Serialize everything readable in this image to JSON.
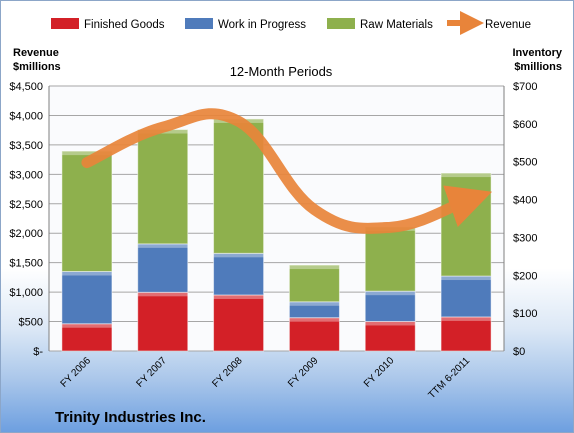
{
  "chart_data": {
    "type": "bar",
    "title": "12-Month Periods",
    "subtitle": "Trinity Industries Inc.",
    "left_axis_label": [
      "Revenue",
      "$millions"
    ],
    "right_axis_label": [
      "Inventory",
      "$millions"
    ],
    "categories": [
      "FY 2006",
      "FY 2007",
      "FY 2008",
      "FY 2009",
      "FY 2010",
      "TTM 6-2011"
    ],
    "series": [
      {
        "name": "Finished Goods",
        "kind": "bar",
        "axis": "right",
        "color": "#d32027",
        "values": [
          72,
          155,
          148,
          88,
          78,
          90
        ]
      },
      {
        "name": "Work in Progress",
        "kind": "bar",
        "axis": "right",
        "color": "#4f7bbb",
        "values": [
          138,
          128,
          110,
          42,
          80,
          108
        ]
      },
      {
        "name": "Raw Materials",
        "kind": "bar",
        "axis": "right",
        "color": "#8eb04d",
        "values": [
          318,
          302,
          355,
          97,
          170,
          272
        ]
      },
      {
        "name": "Revenue",
        "kind": "line",
        "axis": "left",
        "color": "#e8843a",
        "values": [
          3200,
          3800,
          3900,
          2400,
          2100,
          2550
        ]
      }
    ],
    "left_axis": {
      "min": 0,
      "max": 4500,
      "ticks": [
        "$-",
        "$500",
        "$1,000",
        "$1,500",
        "$2,000",
        "$2,500",
        "$3,000",
        "$3,500",
        "$4,000",
        "$4,500"
      ]
    },
    "right_axis": {
      "min": 0,
      "max": 700,
      "ticks": [
        "$0",
        "$100",
        "$200",
        "$300",
        "$400",
        "$500",
        "$600",
        "$700"
      ]
    },
    "grid": true,
    "legend": "top"
  }
}
